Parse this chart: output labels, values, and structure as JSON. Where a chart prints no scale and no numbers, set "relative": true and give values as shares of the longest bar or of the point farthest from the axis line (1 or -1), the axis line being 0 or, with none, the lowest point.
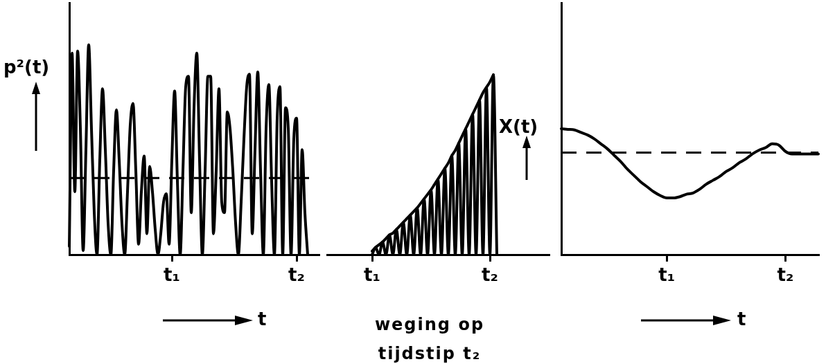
{
  "chart_data": [
    {
      "type": "line",
      "ylabel": "p²(t)",
      "xlabel": "t",
      "relative": true,
      "tick_labels": "x",
      "categories": [
        null,
        null,
        null,
        null,
        null,
        null,
        null,
        null,
        null,
        null,
        null,
        null,
        null,
        null,
        null,
        null,
        null,
        null,
        null,
        null,
        null,
        null,
        null,
        null,
        null,
        null,
        null,
        null,
        null,
        null,
        null,
        null,
        null,
        null,
        null,
        null,
        null,
        "t₁",
        null,
        null,
        null,
        null,
        null,
        null,
        null,
        null,
        null,
        null,
        null,
        null,
        null,
        null,
        null,
        null,
        null,
        null,
        null,
        null,
        null,
        null,
        null,
        null,
        null,
        null,
        null,
        null,
        null,
        null,
        null,
        null,
        null,
        null,
        null,
        null,
        null,
        null,
        null,
        null,
        null,
        null,
        null,
        null,
        "t₂",
        null,
        null,
        null,
        null,
        null,
        null,
        null,
        null
      ],
      "series": [
        {
          "color": "#000000",
          "values": [
            0.04,
            0.96,
            0.3,
            0.97,
            0.6,
            0.02,
            0.5,
            1.0,
            0.6,
            0.2,
            0,
            0.45,
            0.79,
            0.5,
            0.15,
            0,
            0.4,
            0.69,
            0.45,
            0.15,
            0,
            0.3,
            0.62,
            0.72,
            0.4,
            0.05,
            0.3,
            0.47,
            0.1,
            0.42,
            0.3,
            0.12,
            0,
            0.1,
            0.25,
            0.29,
            0.05,
            0.45,
            0.78,
            0.35,
            0,
            0.4,
            0.8,
            0.85,
            0.2,
            0.7,
            0.96,
            0.45,
            0,
            0.4,
            0.85,
            0.85,
            0.1,
            0.4,
            0.79,
            0.25,
            0.2,
            0.68,
            0.6,
            0.4,
            0.15,
            0,
            0.25,
            0.55,
            0.8,
            0.86,
            0.1,
            0.5,
            0.87,
            0.4,
            0,
            0.6,
            0.81,
            0.35,
            0,
            0.65,
            0.8,
            0,
            0.7,
            0.6,
            0,
            0.55,
            0.65,
            0,
            0.5,
            0.2,
            0,
            null,
            null,
            null,
            null
          ]
        }
      ],
      "ref_lines": [
        {
          "axis": "y",
          "value": 0.365,
          "line_style": "dashed"
        }
      ]
    },
    {
      "type": "line",
      "xlabel": "weging op tijdstip t₂",
      "relative": true,
      "tick_labels": "x",
      "categories": [
        null,
        null,
        null,
        null,
        null,
        null,
        null,
        null,
        null,
        null,
        null,
        null,
        null,
        "t₁",
        null,
        null,
        null,
        null,
        null,
        null,
        null,
        null,
        null,
        null,
        null,
        null,
        null,
        null,
        null,
        null,
        null,
        null,
        null,
        null,
        null,
        null,
        null,
        null,
        null,
        null,
        null,
        null,
        null,
        null,
        null,
        null,
        null,
        "t₂",
        null,
        null,
        null,
        null,
        null,
        null,
        null,
        null,
        null,
        null,
        null,
        null,
        null,
        null,
        null,
        null,
        null
      ],
      "series": [
        {
          "color": "#000000",
          "values": [
            null,
            null,
            null,
            null,
            null,
            null,
            null,
            null,
            null,
            null,
            null,
            null,
            null,
            0.02,
            0.04,
            0.055,
            0.07,
            0.09,
            0.11,
            0.12,
            0.14,
            0.16,
            0.18,
            0.2,
            0.22,
            0.24,
            0.26,
            0.285,
            0.31,
            0.335,
            0.36,
            0.39,
            0.42,
            0.45,
            0.48,
            0.51,
            0.55,
            0.58,
            0.62,
            0.66,
            0.7,
            0.74,
            0.78,
            0.82,
            0.86,
            0.9,
            0.93,
            0.96,
            1.0,
            null,
            null,
            null,
            null,
            null,
            null,
            null,
            null,
            null,
            null,
            null,
            null,
            null,
            null,
            null,
            null
          ]
        },
        {
          "color": "#000000",
          "values": [
            null,
            null,
            null,
            null,
            null,
            null,
            null,
            null,
            null,
            null,
            null,
            null,
            null,
            0,
            0.04,
            0,
            0.07,
            0,
            0.11,
            0,
            0.14,
            0,
            0.18,
            0,
            0.22,
            0,
            0.26,
            0,
            0.31,
            0,
            0.36,
            0,
            0.42,
            0,
            0.48,
            0,
            0.55,
            0,
            0.62,
            0,
            0.7,
            0,
            0.78,
            0,
            0.86,
            0,
            0.93,
            0,
            1.0,
            0,
            null,
            null,
            null,
            null,
            null,
            null,
            null,
            null,
            null,
            null,
            null,
            null,
            null,
            null,
            null
          ]
        }
      ]
    },
    {
      "type": "line",
      "ylabel": "X(t)",
      "xlabel": "t",
      "relative": true,
      "tick_labels": "x",
      "categories": [
        null,
        null,
        null,
        null,
        null,
        null,
        null,
        null,
        null,
        null,
        null,
        null,
        null,
        null,
        null,
        null,
        "t₁",
        null,
        null,
        null,
        null,
        null,
        null,
        null,
        null,
        null,
        null,
        null,
        null,
        null,
        null,
        null,
        null,
        null,
        "t₂",
        null,
        null,
        null,
        null,
        null
      ],
      "series": [
        {
          "color": "#000000",
          "values": [
            1.0,
            0.995,
            0.99,
            0.97,
            0.95,
            0.92,
            0.88,
            0.84,
            0.79,
            0.74,
            0.68,
            0.63,
            0.58,
            0.54,
            0.5,
            0.47,
            0.45,
            0.45,
            0.46,
            0.48,
            0.49,
            0.52,
            0.56,
            0.59,
            0.62,
            0.66,
            0.69,
            0.73,
            0.76,
            0.8,
            0.83,
            0.85,
            0.88,
            0.87,
            0.82,
            0.8,
            0.8,
            0.8,
            0.8,
            0.8
          ]
        }
      ],
      "ref_lines": [
        {
          "axis": "y",
          "value": 0.81,
          "line_style": "dashed"
        }
      ]
    }
  ]
}
